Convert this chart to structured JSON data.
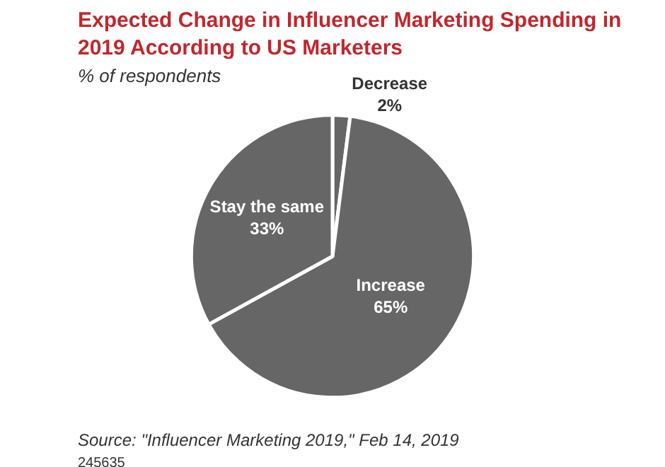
{
  "chart_data": {
    "type": "pie",
    "title": "Expected Change in Influencer Marketing Spending in 2019 According to US Marketers",
    "subtitle": "% of respondents",
    "categories": [
      "Decrease",
      "Increase",
      "Stay the same"
    ],
    "values": [
      2,
      65,
      33
    ],
    "value_labels": [
      "2%",
      "65%",
      "33%"
    ],
    "colors": [
      "#666666",
      "#666666",
      "#666666"
    ],
    "legend": false,
    "annotations": [
      "Source: \"Influencer Marketing 2019,\" Feb 14, 2019",
      "245635"
    ]
  }
}
